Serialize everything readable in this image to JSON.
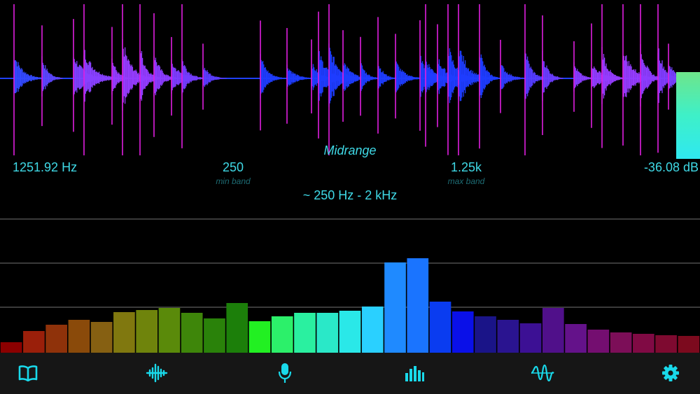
{
  "display": {
    "band_name": "Midrange",
    "frequency": "1251.92 Hz",
    "level": "-36.08 dB",
    "min_band_value": "250",
    "min_band_label": "min band",
    "max_band_value": "1.25k",
    "max_band_label": "max band",
    "range": "~  250 Hz  -  2 kHz"
  },
  "chart_data": {
    "type": "bar",
    "values": [
      16,
      32,
      41,
      48,
      45,
      59,
      62,
      65,
      58,
      50,
      72,
      46,
      53,
      58,
      58,
      61,
      67,
      130,
      136,
      74,
      60,
      53,
      48,
      43,
      65,
      42,
      34,
      30,
      28,
      26,
      25
    ],
    "colors": [
      "#8b0000",
      "#9a1f0a",
      "#8f320a",
      "#8a4a0a",
      "#866012",
      "#80780f",
      "#6f840c",
      "#5a8a0a",
      "#3e860a",
      "#2a820a",
      "#1c7f0a",
      "#22f022",
      "#2cf06a",
      "#2af0a0",
      "#2ae8c8",
      "#2ae8e8",
      "#2ad0ff",
      "#1f8aff",
      "#1a74ff",
      "#0a3cf0",
      "#0a10e8",
      "#1a1488",
      "#2a1490",
      "#3c1094",
      "#50108a",
      "#64128a",
      "#740e70",
      "#7c0e58",
      "#800a44",
      "#7e0a30",
      "#7c0a1e"
    ],
    "gridlines": 3
  },
  "waveform": {
    "transients": [
      0.02,
      0.06,
      0.105,
      0.12,
      0.16,
      0.175,
      0.2,
      0.22,
      0.245,
      0.26,
      0.29,
      0.372,
      0.41,
      0.445,
      0.455,
      0.47,
      0.49,
      0.515,
      0.54,
      0.565,
      0.6,
      0.608,
      0.625,
      0.64,
      0.655,
      0.685,
      0.715,
      0.75,
      0.775,
      0.82,
      0.845,
      0.86,
      0.89,
      0.915,
      0.94,
      0.955
    ]
  },
  "toolbar": {
    "icons": [
      "book-icon",
      "waveform-icon",
      "microphone-icon",
      "spectrum-bars-icon",
      "oscilloscope-icon",
      "gear-icon"
    ],
    "accent": "#19d9ea"
  }
}
